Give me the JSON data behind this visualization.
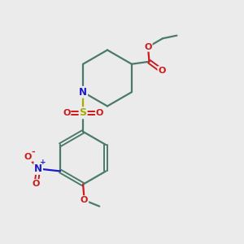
{
  "bg_color": "#ebebeb",
  "bond_color": "#4a7a6a",
  "n_color": "#1a1acc",
  "o_color": "#cc1a1a",
  "s_color": "#aaaa00",
  "figsize": [
    3.0,
    3.0
  ],
  "dpi": 100,
  "xlim": [
    0,
    10
  ],
  "ylim": [
    0,
    10
  ]
}
